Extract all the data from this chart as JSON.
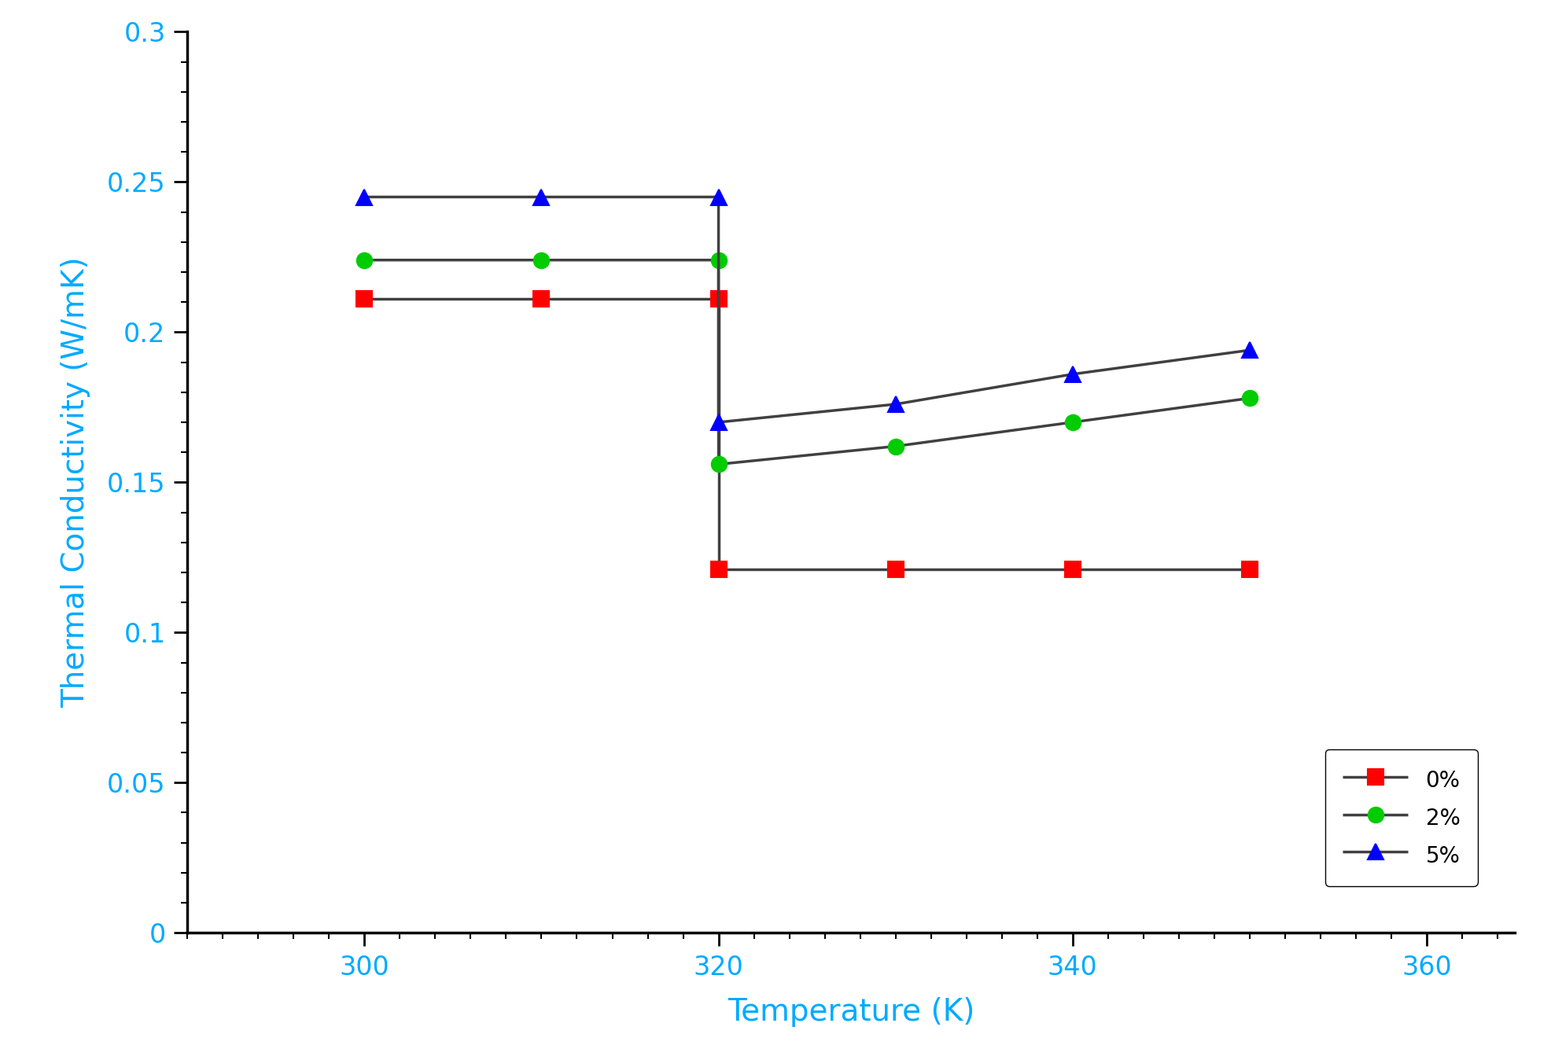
{
  "title": "",
  "xlabel": "Temperature (K)",
  "ylabel": "Thermal Conductivity (W/mK)",
  "xlim": [
    290,
    365
  ],
  "ylim": [
    0,
    0.3
  ],
  "xticks": [
    300,
    320,
    340,
    360
  ],
  "yticks": [
    0,
    0.05,
    0.1,
    0.15,
    0.2,
    0.25,
    0.3
  ],
  "ytick_labels": [
    "0",
    "0.05",
    "0.1",
    "0.15",
    "0.2",
    "0.25",
    "0.3"
  ],
  "series": [
    {
      "label": "0%",
      "color": "#ff0000",
      "marker": "s",
      "x": [
        300,
        310,
        320,
        320,
        330,
        340,
        350
      ],
      "y": [
        0.211,
        0.211,
        0.211,
        0.121,
        0.121,
        0.121,
        0.121
      ]
    },
    {
      "label": "2%",
      "color": "#00cc00",
      "marker": "o",
      "x": [
        300,
        310,
        320,
        320,
        330,
        340,
        350
      ],
      "y": [
        0.224,
        0.224,
        0.224,
        0.156,
        0.162,
        0.17,
        0.178
      ]
    },
    {
      "label": "5%",
      "color": "#0000ff",
      "marker": "^",
      "x": [
        300,
        310,
        320,
        320,
        330,
        340,
        350
      ],
      "y": [
        0.245,
        0.245,
        0.245,
        0.17,
        0.176,
        0.186,
        0.194
      ]
    }
  ],
  "line_color": "#404040",
  "background_color": "#ffffff",
  "xlabel_color": "#00aaff",
  "ylabel_color": "#00aaff",
  "tick_label_color": "#00aaff",
  "legend_fontsize": 20,
  "axis_label_fontsize": 28,
  "tick_fontsize": 24,
  "marker_size": 14,
  "line_width": 2.5
}
